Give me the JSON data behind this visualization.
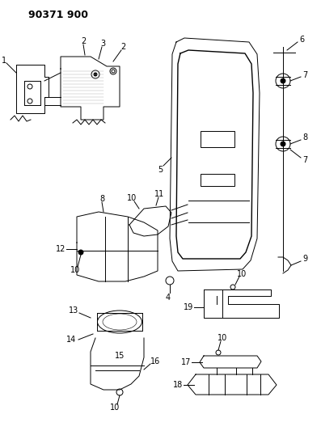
{
  "title": "90371 900",
  "bg_color": "#ffffff",
  "line_color": "#000000",
  "title_fontsize": 9,
  "label_fontsize": 7,
  "fig_width": 3.97,
  "fig_height": 5.33
}
